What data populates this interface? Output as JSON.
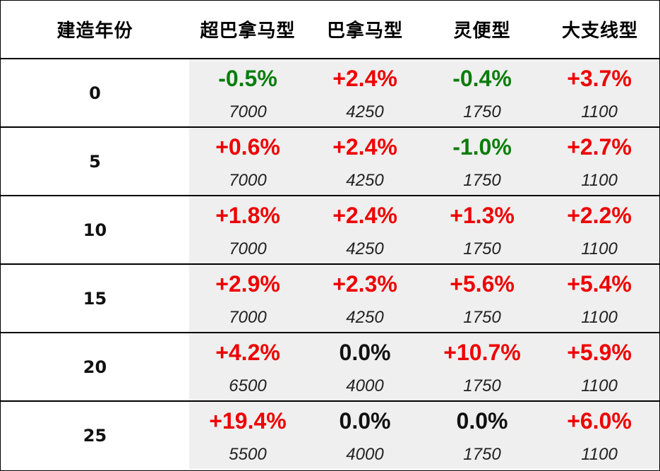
{
  "header": [
    "建造年份",
    "超巴拿马型",
    "巴拿马型",
    "灵便型",
    "大支线型"
  ],
  "colors": {
    "up": "#ee0000",
    "down": "#0a7d0a",
    "zero": "#111111",
    "cell_bg": "#efefef"
  },
  "rows": [
    {
      "year": "0",
      "cells": [
        {
          "pct": "-0.5%",
          "val": "7000",
          "dir": "down"
        },
        {
          "pct": "+2.4%",
          "val": "4250",
          "dir": "up"
        },
        {
          "pct": "-0.4%",
          "val": "1750",
          "dir": "down"
        },
        {
          "pct": "+3.7%",
          "val": "1100",
          "dir": "up"
        }
      ]
    },
    {
      "year": "5",
      "cells": [
        {
          "pct": "+0.6%",
          "val": "7000",
          "dir": "up"
        },
        {
          "pct": "+2.4%",
          "val": "4250",
          "dir": "up"
        },
        {
          "pct": "-1.0%",
          "val": "1750",
          "dir": "down"
        },
        {
          "pct": "+2.7%",
          "val": "1100",
          "dir": "up"
        }
      ]
    },
    {
      "year": "10",
      "cells": [
        {
          "pct": "+1.8%",
          "val": "7000",
          "dir": "up"
        },
        {
          "pct": "+2.4%",
          "val": "4250",
          "dir": "up"
        },
        {
          "pct": "+1.3%",
          "val": "1750",
          "dir": "up"
        },
        {
          "pct": "+2.2%",
          "val": "1100",
          "dir": "up"
        }
      ]
    },
    {
      "year": "15",
      "cells": [
        {
          "pct": "+2.9%",
          "val": "7000",
          "dir": "up"
        },
        {
          "pct": "+2.3%",
          "val": "4250",
          "dir": "up"
        },
        {
          "pct": "+5.6%",
          "val": "1750",
          "dir": "up"
        },
        {
          "pct": "+5.4%",
          "val": "1100",
          "dir": "up"
        }
      ]
    },
    {
      "year": "20",
      "cells": [
        {
          "pct": "+4.2%",
          "val": "6500",
          "dir": "up"
        },
        {
          "pct": "0.0%",
          "val": "4000",
          "dir": "zero"
        },
        {
          "pct": "+10.7%",
          "val": "1750",
          "dir": "up"
        },
        {
          "pct": "+5.9%",
          "val": "1100",
          "dir": "up"
        }
      ]
    },
    {
      "year": "25",
      "cells": [
        {
          "pct": "+19.4%",
          "val": "5500",
          "dir": "up"
        },
        {
          "pct": "0.0%",
          "val": "4000",
          "dir": "zero"
        },
        {
          "pct": "0.0%",
          "val": "1750",
          "dir": "zero"
        },
        {
          "pct": "+6.0%",
          "val": "1100",
          "dir": "up"
        }
      ]
    }
  ]
}
